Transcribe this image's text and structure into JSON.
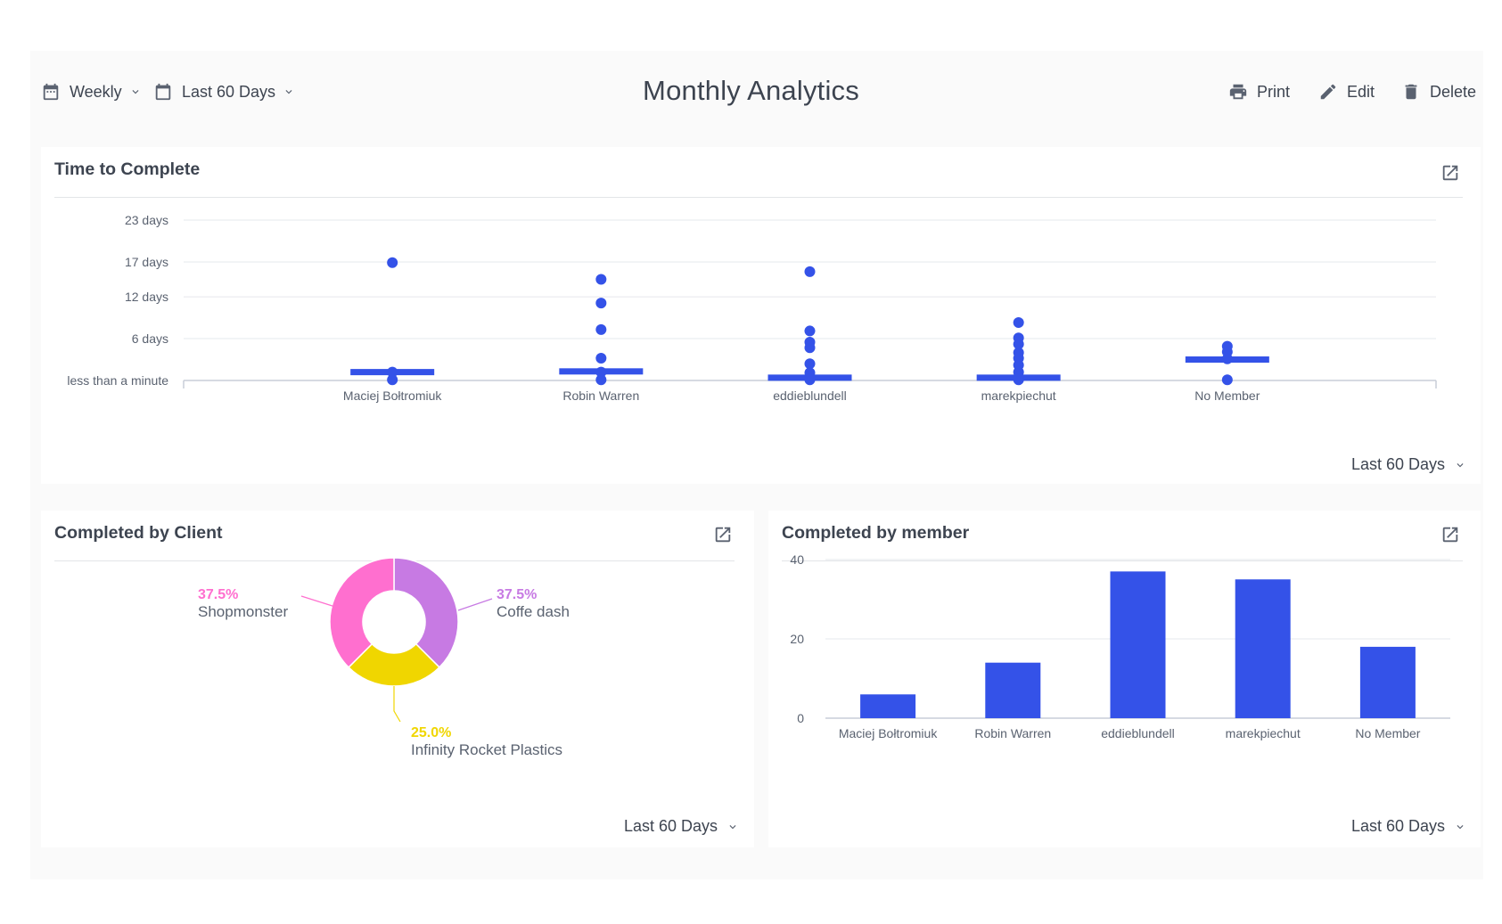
{
  "header": {
    "period_label": "Weekly",
    "range_label": "Last 60 Days",
    "title": "Monthly Analytics",
    "print_label": "Print",
    "edit_label": "Edit",
    "delete_label": "Delete"
  },
  "cards": {
    "time_to_complete": {
      "title": "Time to Complete",
      "range_label": "Last 60 Days"
    },
    "by_client": {
      "title": "Completed by Client",
      "range_label": "Last 60 Days"
    },
    "by_member": {
      "title": "Completed by member",
      "range_label": "Last 60 Days"
    }
  },
  "colors": {
    "accent": "#3452e8",
    "pink": "#ff6fcf",
    "purple": "#c77ae3",
    "yellow": "#f0d600",
    "text": "#3d4450"
  },
  "chart_data": [
    {
      "type": "scatter",
      "title": "Time to Complete",
      "categories": [
        "Maciej Bołtromiuk",
        "Robin Warren",
        "eddieblundell",
        "marekpiechut",
        "No Member"
      ],
      "y_tick_labels": [
        "less than a minute",
        "6 days",
        "12 days",
        "17 days",
        "23 days"
      ],
      "y_unit": "days",
      "ylim": [
        0,
        23
      ],
      "points": [
        [
          16.9,
          1.2,
          0.1
        ],
        [
          14.5,
          11.1,
          7.3,
          3.2,
          1.2,
          0.1
        ],
        [
          15.6,
          7.1,
          5.5,
          4.7,
          2.4,
          1.1,
          0.4,
          0.1
        ],
        [
          8.3,
          6.1,
          5.2,
          4.0,
          3.2,
          2.2,
          1.2,
          0.4,
          0.1
        ],
        [
          4.9,
          4.1,
          3.1,
          0.1
        ]
      ],
      "medians": [
        1.2,
        1.3,
        0.4,
        0.4,
        3.0
      ],
      "grid": true
    },
    {
      "type": "pie",
      "title": "Completed by Client",
      "slices": [
        {
          "label": "Coffe dash",
          "percent_label": "37.5%",
          "value": 37.5,
          "color": "#c77ae3"
        },
        {
          "label": "Infinity Rocket Plastics",
          "percent_label": "25.0%",
          "value": 25.0,
          "color": "#f0d600"
        },
        {
          "label": "Shopmonster",
          "percent_label": "37.5%",
          "value": 37.5,
          "color": "#ff6fcf"
        }
      ]
    },
    {
      "type": "bar",
      "title": "Completed by member",
      "categories": [
        "Maciej Bołtromiuk",
        "Robin Warren",
        "eddieblundell",
        "marekpiechut",
        "No Member"
      ],
      "values": [
        6,
        14,
        37,
        35,
        18
      ],
      "y_ticks": [
        0,
        20,
        40
      ],
      "ylim": [
        0,
        40
      ],
      "grid": true
    }
  ]
}
